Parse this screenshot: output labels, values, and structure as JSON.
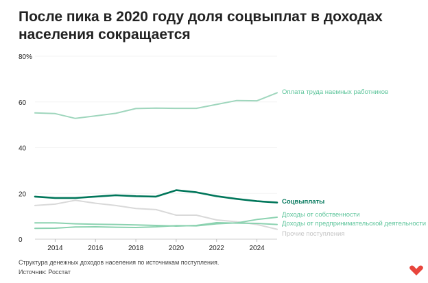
{
  "title": "После пика в 2020 году доля соцвыплат в доходах населения сокращается",
  "caption": "Структура денежных доходов населения по источникам поступления.",
  "source": "Источник: Росстат",
  "logo_icon": "heart-logo-icon",
  "colors": {
    "wages": "#9fd6bd",
    "social": "#00765a",
    "property": "#8bd2b0",
    "business": "#8bd2b0",
    "other": "#d9d9d9",
    "logo": "#e8453c"
  },
  "chart_data": {
    "type": "line",
    "title": "После пика в 2020 году доля соцвыплат в доходах населения сокращается",
    "xlabel": "",
    "ylabel": "",
    "ylim": [
      0,
      80
    ],
    "xlim": [
      2013,
      2025
    ],
    "y_ticks": [
      "0",
      "20",
      "40",
      "60",
      "80%"
    ],
    "y_tick_values": [
      0,
      20,
      40,
      60,
      80
    ],
    "x_ticks": [
      "2014",
      "2016",
      "2018",
      "2020",
      "2022",
      "2024"
    ],
    "x_tick_values": [
      2014,
      2016,
      2018,
      2020,
      2022,
      2024
    ],
    "grid": true,
    "legend": "inline labels at right end of lines",
    "x": [
      2013,
      2014,
      2015,
      2016,
      2017,
      2018,
      2019,
      2020,
      2021,
      2022,
      2023,
      2024,
      2025
    ],
    "series": [
      {
        "name": "Оплата труда наемных работников",
        "color_key": "wages",
        "bold": false,
        "values": [
          55.2,
          54.9,
          52.8,
          53.9,
          55.0,
          57.1,
          57.3,
          57.2,
          57.2,
          58.9,
          60.6,
          60.5,
          64.0
        ]
      },
      {
        "name": "Соцвыплаты",
        "color_key": "social",
        "bold": true,
        "values": [
          18.6,
          18.0,
          18.0,
          18.6,
          19.2,
          18.8,
          18.6,
          21.4,
          20.5,
          18.8,
          17.6,
          16.6,
          16.0
        ]
      },
      {
        "name": "Доходы от собственности",
        "color_key": "property",
        "bold": false,
        "values": [
          4.7,
          4.8,
          5.3,
          5.4,
          5.2,
          5.1,
          5.4,
          5.9,
          5.8,
          6.7,
          7.1,
          8.6,
          9.6
        ]
      },
      {
        "name": "Доходы от предпринимательской деятельности",
        "color_key": "business",
        "bold": false,
        "values": [
          7.1,
          7.1,
          6.7,
          6.5,
          6.4,
          6.2,
          6.0,
          5.7,
          6.0,
          7.2,
          7.0,
          6.9,
          6.4
        ]
      },
      {
        "name": "Прочие поступления",
        "color_key": "other",
        "bold": false,
        "values": [
          14.7,
          15.3,
          17.0,
          15.7,
          14.7,
          13.4,
          12.9,
          10.5,
          10.5,
          8.4,
          7.6,
          6.4,
          4.3
        ]
      }
    ]
  }
}
